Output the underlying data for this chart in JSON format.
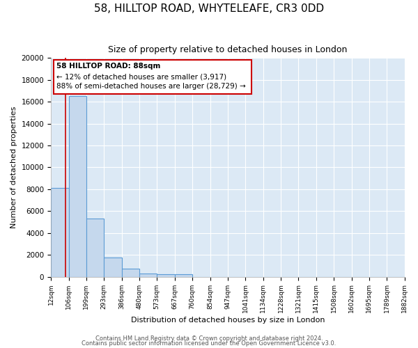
{
  "title": "58, HILLTOP ROAD, WHYTELEAFE, CR3 0DD",
  "subtitle": "Size of property relative to detached houses in London",
  "xlabel": "Distribution of detached houses by size in London",
  "ylabel": "Number of detached properties",
  "bar_edges": [
    12,
    106,
    199,
    293,
    386,
    480,
    573,
    667,
    760,
    854,
    947,
    1041,
    1134,
    1228,
    1321,
    1415,
    1508,
    1602,
    1695,
    1789,
    1882
  ],
  "bar_heights": [
    8100,
    16500,
    5300,
    1750,
    750,
    300,
    200,
    200,
    0,
    0,
    0,
    0,
    0,
    0,
    0,
    0,
    0,
    0,
    0,
    0
  ],
  "bar_color": "#c5d8ed",
  "bar_edgecolor": "#5b9bd5",
  "tick_labels": [
    "12sqm",
    "106sqm",
    "199sqm",
    "293sqm",
    "386sqm",
    "480sqm",
    "573sqm",
    "667sqm",
    "760sqm",
    "854sqm",
    "947sqm",
    "1041sqm",
    "1134sqm",
    "1228sqm",
    "1321sqm",
    "1415sqm",
    "1508sqm",
    "1602sqm",
    "1695sqm",
    "1789sqm",
    "1882sqm"
  ],
  "ylim": [
    0,
    20000
  ],
  "yticks": [
    0,
    2000,
    4000,
    6000,
    8000,
    10000,
    12000,
    14000,
    16000,
    18000,
    20000
  ],
  "property_line_x": 88,
  "property_line_color": "#cc0000",
  "annotation_title": "58 HILLTOP ROAD: 88sqm",
  "annotation_line1": "← 12% of detached houses are smaller (3,917)",
  "annotation_line2": "88% of semi-detached houses are larger (28,729) →",
  "annotation_box_color": "#ffffff",
  "annotation_box_edgecolor": "#cc0000",
  "plot_bg_color": "#dce9f5",
  "fig_bg_color": "#ffffff",
  "grid_color": "#ffffff",
  "footer1": "Contains HM Land Registry data © Crown copyright and database right 2024.",
  "footer2": "Contains public sector information licensed under the Open Government Licence v3.0."
}
